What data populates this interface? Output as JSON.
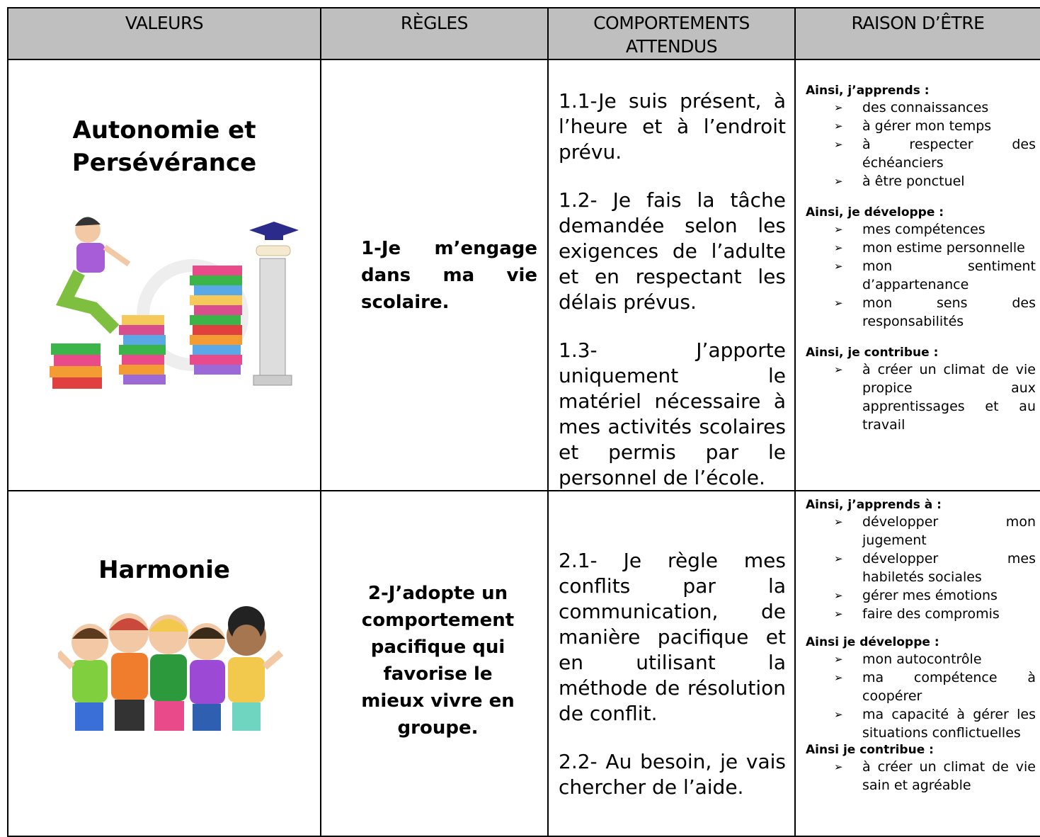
{
  "header": [
    "VALEURS",
    "RÈGLES",
    "COMPORTEMENTS ATTENDUS",
    "RAISON D’ÊTRE"
  ],
  "rows": [
    {
      "value": "Autonomie et Persévérance",
      "rule": "1-Je m’engage dans ma vie scolaire.",
      "behaviors": [
        "1.1-Je suis présent, à l’heure et à l’endroit prévu.",
        "1.2- Je fais la tâche demandée selon les exigences de l’adulte et en respectant les délais prévus.",
        "1.3- J’apporte uniquement le matériel nécessaire à mes activités scolaires et permis par le personnel de l’école."
      ],
      "reasons": [
        {
          "heading": "Ainsi, j’apprends :",
          "items": [
            "des connaissances",
            "à gérer mon temps",
            "à respecter des échéanciers",
            "à être ponctuel"
          ]
        },
        {
          "heading": "Ainsi, je développe :",
          "items": [
            "mes compétences",
            "mon estime personnelle",
            "mon sentiment d’appartenance",
            "mon sens des responsabilités"
          ]
        },
        {
          "heading": "Ainsi, je contribue :",
          "items": [
            "à créer un climat de vie propice aux apprentissages et au travail"
          ]
        }
      ]
    },
    {
      "value": "Harmonie",
      "rule": "2-J’adopte un comportement pacifique qui favorise le mieux vivre en groupe.",
      "behaviors": [
        "2.1- Je règle mes conflits par la communication, de manière pacifique et en utilisant la méthode de résolution de conflit.",
        "2.2- Au besoin, je vais chercher de l’aide."
      ],
      "reasons": [
        {
          "heading": "Ainsi, j’apprends à :",
          "items": [
            "développer mon jugement",
            "développer mes habiletés sociales",
            "gérer mes émotions",
            "faire des compromis"
          ]
        },
        {
          "heading": "Ainsi je développe :",
          "items": [
            "mon autocontrôle",
            "ma compétence à coopérer",
            "ma capacité à gérer les situations conflictuelles"
          ]
        },
        {
          "heading": "Ainsi je contribue :",
          "items": [
            "à créer un climat de vie sain et agréable"
          ]
        }
      ]
    }
  ]
}
